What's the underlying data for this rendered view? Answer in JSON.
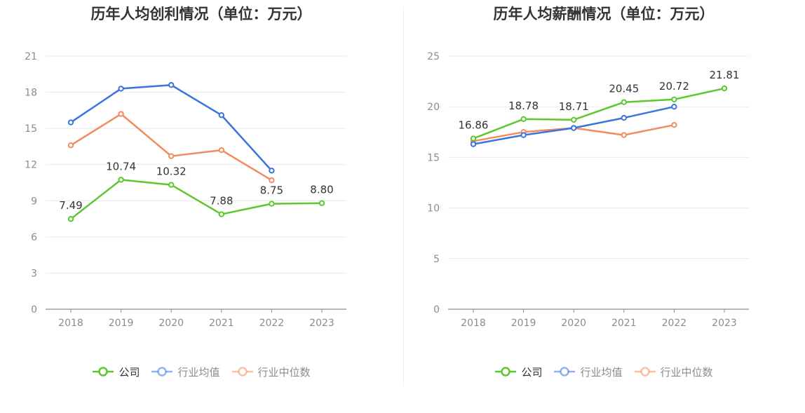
{
  "chart_data": [
    {
      "type": "line",
      "title": "历年人均创利情况（单位：万元）",
      "categories": [
        "2018",
        "2019",
        "2020",
        "2021",
        "2022",
        "2023"
      ],
      "ylim": [
        0,
        21
      ],
      "yticks": [
        0,
        3,
        6,
        9,
        12,
        15,
        18,
        21
      ],
      "grid": true,
      "legend_position": "bottom",
      "series": [
        {
          "name": "公司",
          "color": "#5cc82e",
          "values": [
            7.49,
            10.74,
            10.32,
            7.88,
            8.75,
            8.8
          ],
          "labels": [
            "7.49",
            "10.74",
            "10.32",
            "7.88",
            "8.75",
            "8.80"
          ]
        },
        {
          "name": "行业均值",
          "color": "#3b74dd",
          "values": [
            15.5,
            18.3,
            18.6,
            16.1,
            11.5,
            null
          ]
        },
        {
          "name": "行业中位数",
          "color": "#f28c5f",
          "values": [
            13.6,
            16.2,
            12.7,
            13.2,
            10.7,
            null
          ]
        }
      ]
    },
    {
      "type": "line",
      "title": "历年人均薪酬情况（单位：万元）",
      "categories": [
        "2018",
        "2019",
        "2020",
        "2021",
        "2022",
        "2023"
      ],
      "ylim": [
        0,
        25
      ],
      "yticks": [
        0,
        5,
        10,
        15,
        20,
        25
      ],
      "grid": true,
      "legend_position": "bottom",
      "series": [
        {
          "name": "公司",
          "color": "#5cc82e",
          "values": [
            16.86,
            18.78,
            18.71,
            20.45,
            20.72,
            21.81
          ],
          "labels": [
            "16.86",
            "18.78",
            "18.71",
            "20.45",
            "20.72",
            "21.81"
          ]
        },
        {
          "name": "行业均值",
          "color": "#3b74dd",
          "values": [
            16.3,
            17.2,
            17.9,
            18.9,
            20.0,
            null
          ]
        },
        {
          "name": "行业中位数",
          "color": "#f28c5f",
          "values": [
            16.6,
            17.5,
            17.9,
            17.2,
            18.2,
            null
          ]
        }
      ]
    }
  ]
}
